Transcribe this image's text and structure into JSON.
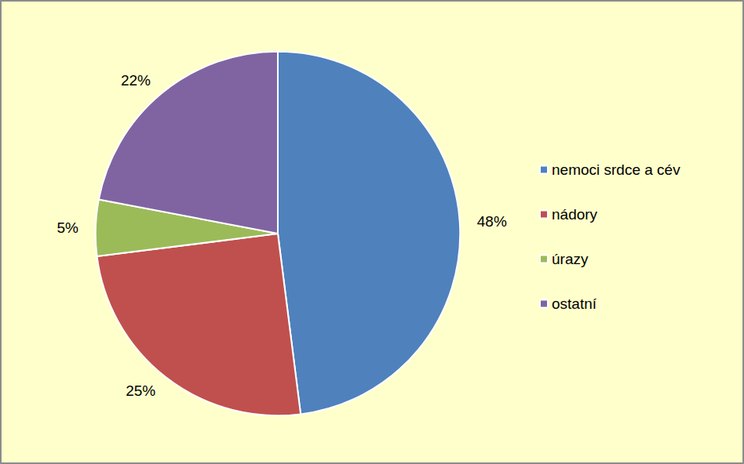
{
  "chart_data": {
    "type": "pie",
    "categories": [
      "nemoci srdce a cév",
      "nádory",
      "úrazy",
      "ostatní"
    ],
    "values": [
      48,
      25,
      5,
      22
    ],
    "value_labels": [
      "48%",
      "25%",
      "5%",
      "22%"
    ],
    "colors": [
      "#4f81bd",
      "#c0504d",
      "#9bbb59",
      "#8064a2"
    ],
    "legend": "right",
    "data_labels": true
  }
}
